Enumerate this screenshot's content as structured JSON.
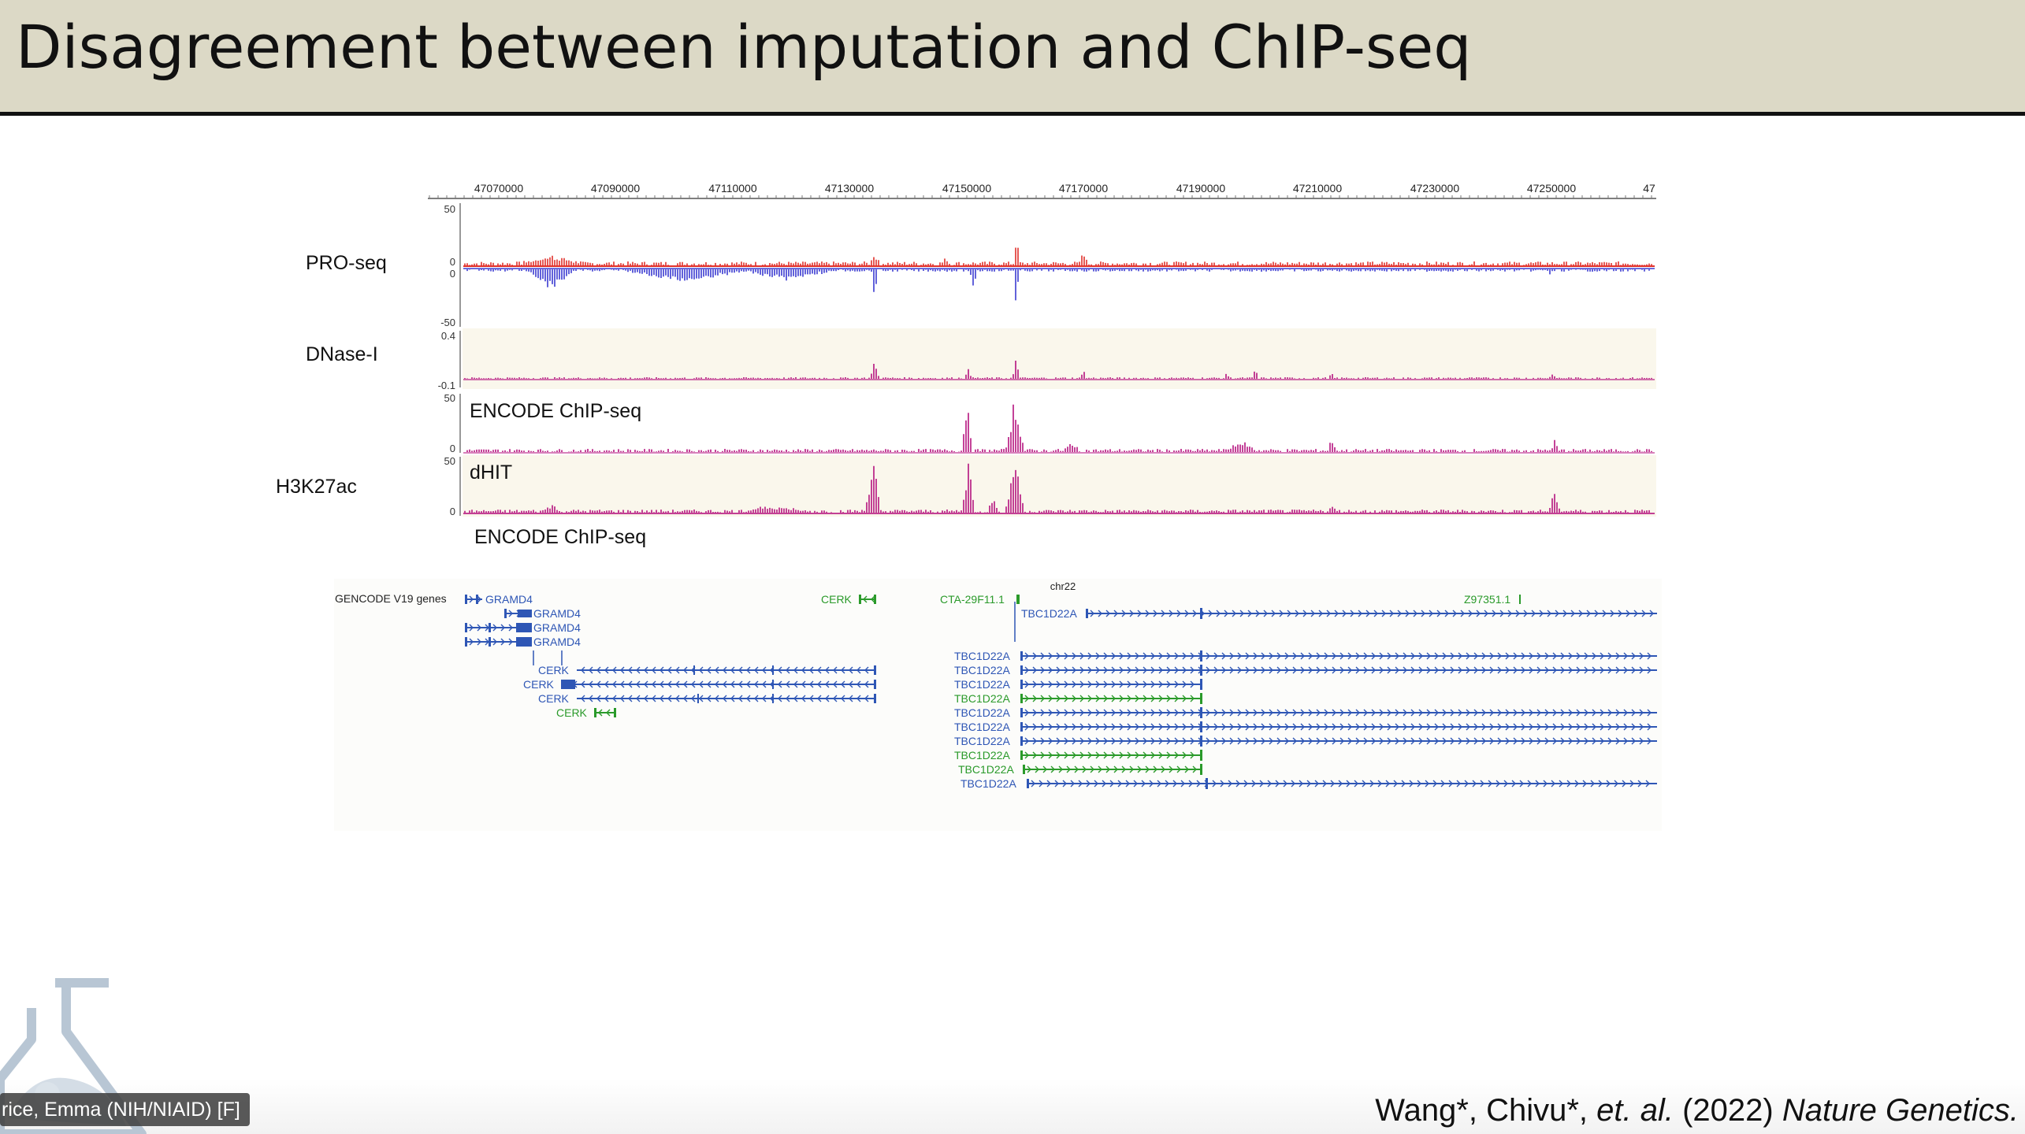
{
  "slide": {
    "title": "Disagreement between imputation and ChIP-seq",
    "citation": {
      "authors": "Wang*, Chivu*, ",
      "etal": "et. al.",
      "year": " (2022) ",
      "journal": "Nature Genetics."
    }
  },
  "speaker_label": "rice, Emma (NIH/NIAID) [F]",
  "browser": {
    "axis_ticks": [
      "47070000",
      "47090000",
      "47110000",
      "47130000",
      "47150000",
      "47170000",
      "47190000",
      "47210000",
      "47230000",
      "47250000",
      "47"
    ],
    "track_names": {
      "proseq": "PRO-seq",
      "dnase": "DNase-I",
      "h3k27ac": "H3K27ac",
      "encode_chip": "ENCODE ChIP-seq",
      "dhit": "dHIT",
      "encode_below": "ENCODE ChIP-seq"
    },
    "scales": {
      "proseq_top": "50",
      "proseq_zero": "0",
      "proseq_zero2": "0",
      "proseq_bottom": "-50",
      "dnase_top": "0.4",
      "dnase_bottom": "-0.1",
      "encode_top": "50",
      "encode_zero": "0",
      "dhit_top": "50",
      "dhit_zero": "0"
    },
    "genes": {
      "chrom": "chr22",
      "track_label": "GENCODE V19 genes",
      "gramd4": [
        "GRAMD4",
        "GRAMD4",
        "GRAMD4",
        "GRAMD4"
      ],
      "cerk": [
        "CERK",
        "CERK",
        "CERK",
        "CERK"
      ],
      "cerk_top": "CERK",
      "cta": "CTA-29F11.1",
      "z97": "Z97351.1",
      "tbc_top": "TBC1D22A",
      "tbc": [
        "TBC1D22A",
        "TBC1D22A",
        "TBC1D22A",
        "TBC1D22A",
        "TBC1D22A",
        "TBC1D22A",
        "TBC1D22A",
        "TBC1D22A",
        "TBC1D22A",
        "TBC1D22A"
      ]
    }
  },
  "colors": {
    "header_bg": "#dcd9c6",
    "plus_strand": "#e0302b",
    "minus_strand": "#3b3bd1",
    "signal": "#b5137f",
    "gene_blue": "#2e56b5",
    "gene_green": "#2a9a2a"
  },
  "icons": [
    "flask-logo-icon"
  ]
}
